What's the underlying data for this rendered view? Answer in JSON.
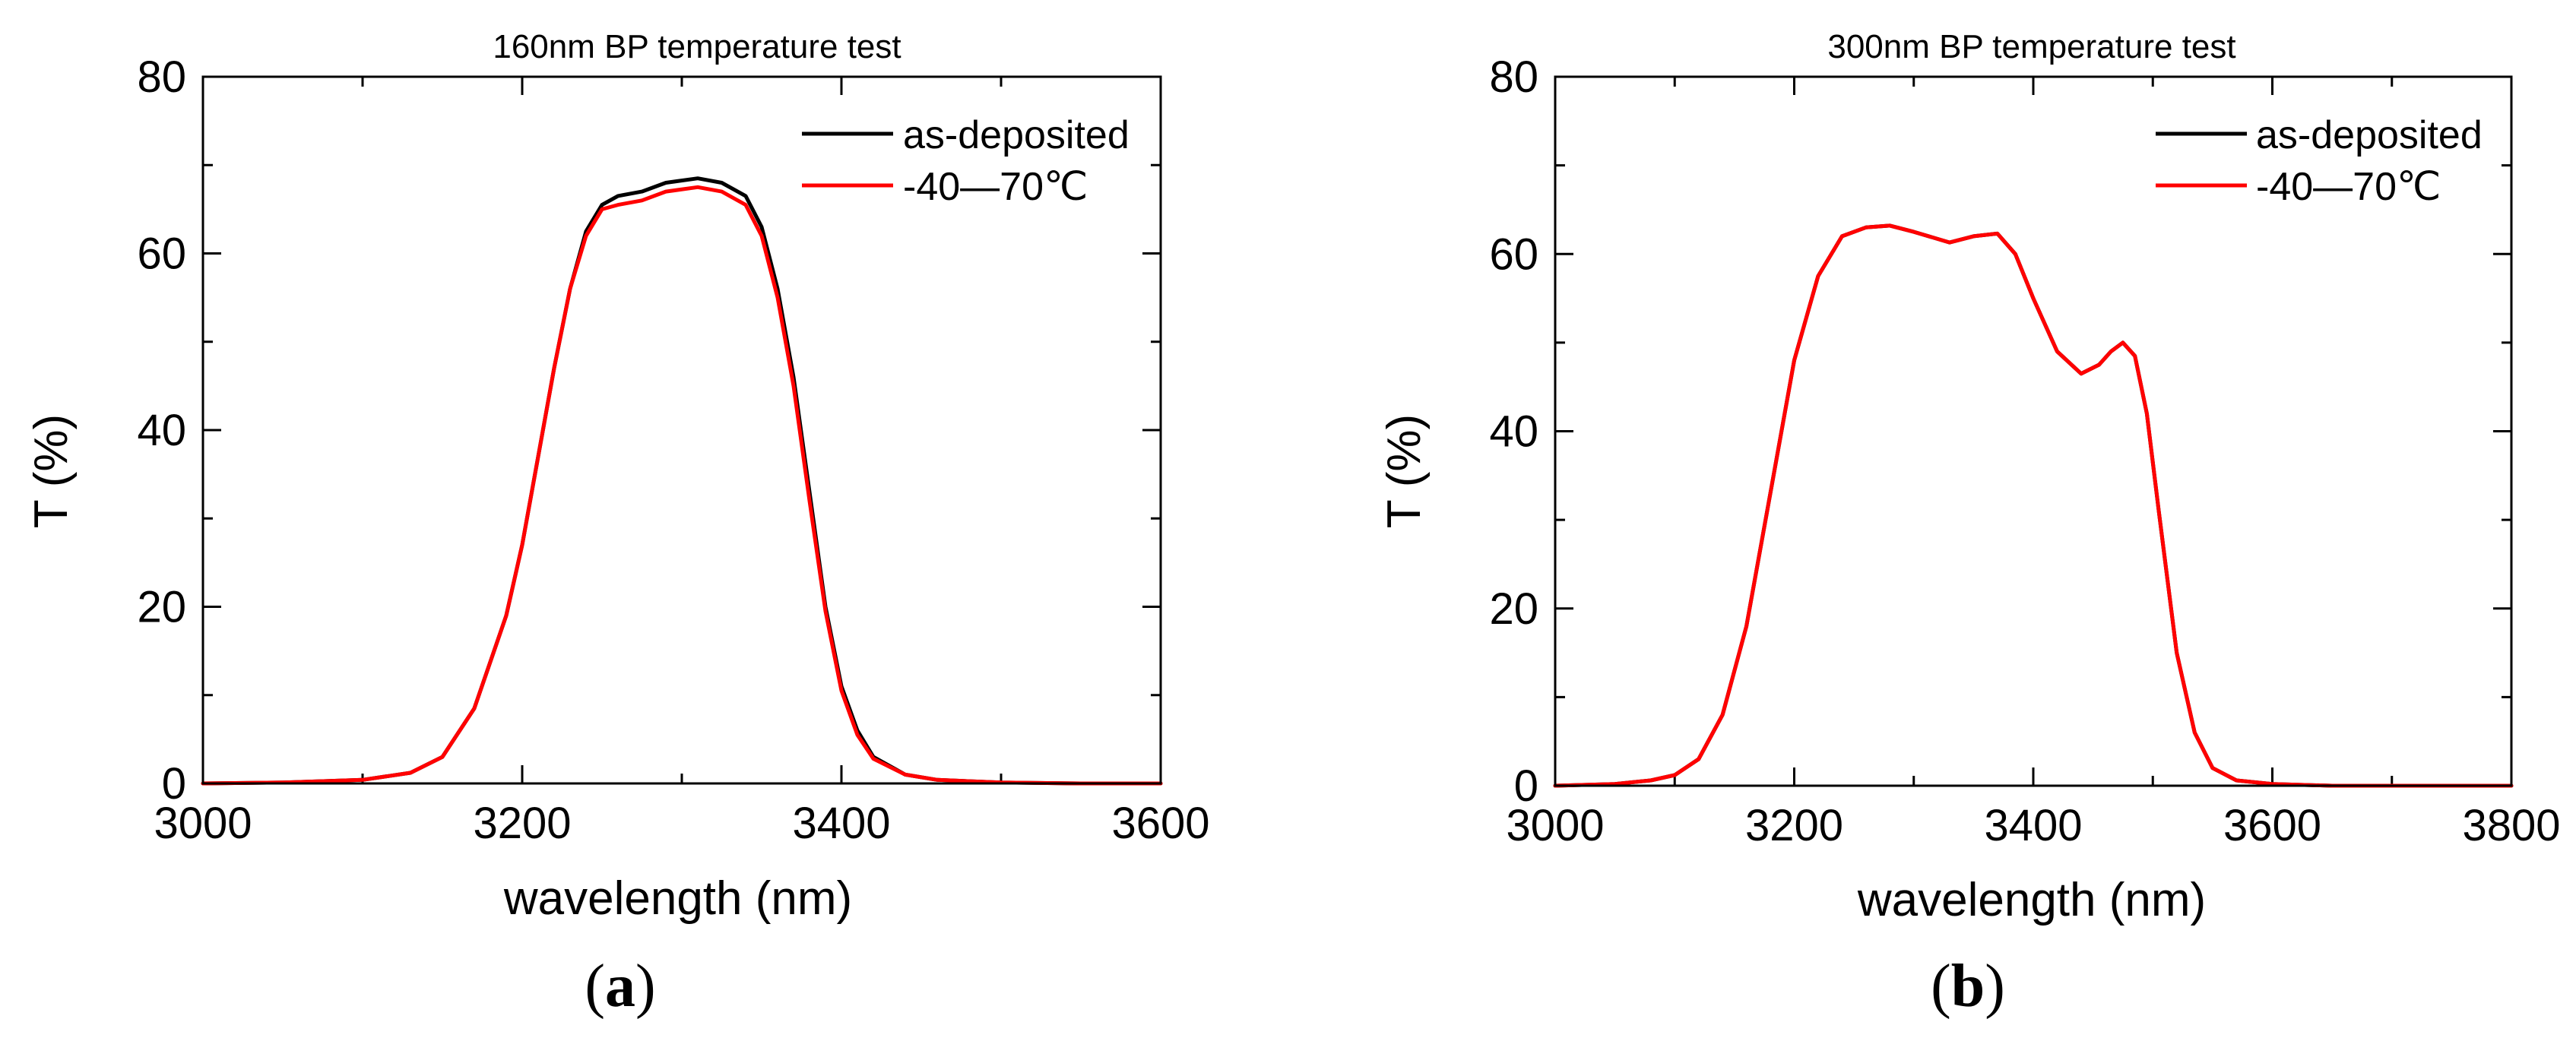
{
  "chart_data": [
    {
      "id": "a",
      "type": "line",
      "panel_label": "a",
      "title": "160nm BP temperature test",
      "xlabel": "wavelength (nm)",
      "ylabel": "T (%)",
      "xlim": [
        3000,
        3600
      ],
      "ylim": [
        0,
        80
      ],
      "xticks": [
        3000,
        3200,
        3400,
        3600
      ],
      "yticks": [
        0,
        20,
        40,
        60,
        80
      ],
      "xminor": 100,
      "yminor": 10,
      "legend_position": "top-right",
      "series": [
        {
          "name": "as-deposited",
          "color": "#000000",
          "x": [
            3000,
            3050,
            3100,
            3130,
            3150,
            3170,
            3190,
            3200,
            3210,
            3220,
            3230,
            3240,
            3250,
            3260,
            3275,
            3290,
            3310,
            3325,
            3340,
            3350,
            3360,
            3370,
            3380,
            3390,
            3400,
            3410,
            3420,
            3440,
            3460,
            3500,
            3550,
            3600
          ],
          "y": [
            0,
            0.1,
            0.4,
            1.2,
            3.0,
            8.5,
            19.0,
            27.0,
            37.0,
            47.0,
            56.0,
            62.5,
            65.5,
            66.5,
            67.0,
            68.0,
            68.5,
            68.0,
            66.5,
            63.0,
            56.0,
            46.0,
            33.0,
            20.0,
            11.0,
            6.0,
            3.0,
            1.0,
            0.4,
            0.1,
            0,
            0
          ]
        },
        {
          "name": "-40—70℃",
          "color": "#ff0000",
          "x": [
            3000,
            3050,
            3100,
            3130,
            3150,
            3170,
            3190,
            3200,
            3210,
            3220,
            3230,
            3240,
            3250,
            3260,
            3275,
            3290,
            3310,
            3325,
            3340,
            3350,
            3360,
            3370,
            3380,
            3390,
            3400,
            3410,
            3420,
            3440,
            3460,
            3500,
            3550,
            3600
          ],
          "y": [
            0,
            0.1,
            0.4,
            1.2,
            3.0,
            8.5,
            19.0,
            27.0,
            37.0,
            47.0,
            56.0,
            62.0,
            65.0,
            65.5,
            66.0,
            67.0,
            67.5,
            67.0,
            65.5,
            62.0,
            55.0,
            45.0,
            32.0,
            19.5,
            10.5,
            5.5,
            2.8,
            1.0,
            0.4,
            0.1,
            0,
            0
          ]
        }
      ]
    },
    {
      "id": "b",
      "type": "line",
      "panel_label": "b",
      "title": "300nm BP temperature test",
      "xlabel": "wavelength (nm)",
      "ylabel": "T (%)",
      "xlim": [
        3000,
        3800
      ],
      "ylim": [
        0,
        80
      ],
      "xticks": [
        3000,
        3200,
        3400,
        3600,
        3800
      ],
      "yticks": [
        0,
        20,
        40,
        60,
        80
      ],
      "xminor": 100,
      "yminor": 10,
      "legend_position": "top-right",
      "series": [
        {
          "name": "as-deposited",
          "color": "#000000",
          "x": [
            3000,
            3050,
            3080,
            3100,
            3120,
            3140,
            3160,
            3180,
            3200,
            3220,
            3240,
            3260,
            3280,
            3300,
            3330,
            3350,
            3370,
            3385,
            3400,
            3420,
            3440,
            3455,
            3465,
            3475,
            3485,
            3495,
            3505,
            3520,
            3535,
            3550,
            3570,
            3600,
            3650,
            3700,
            3800
          ],
          "y": [
            0,
            0.2,
            0.6,
            1.2,
            3.0,
            8.0,
            18.0,
            33.0,
            48.0,
            57.5,
            62.0,
            63.0,
            63.2,
            62.5,
            61.3,
            62.0,
            62.3,
            60.0,
            55.0,
            49.0,
            46.5,
            47.5,
            49.0,
            50.0,
            48.5,
            42.0,
            31.0,
            15.0,
            6.0,
            2.0,
            0.6,
            0.2,
            0,
            0,
            0
          ]
        },
        {
          "name": "-40—70℃",
          "color": "#ff0000",
          "x": [
            3000,
            3050,
            3080,
            3100,
            3120,
            3140,
            3160,
            3180,
            3200,
            3220,
            3240,
            3260,
            3280,
            3300,
            3330,
            3350,
            3370,
            3385,
            3400,
            3420,
            3440,
            3455,
            3465,
            3475,
            3485,
            3495,
            3505,
            3520,
            3535,
            3550,
            3570,
            3600,
            3650,
            3700,
            3800
          ],
          "y": [
            0,
            0.2,
            0.6,
            1.2,
            3.0,
            8.0,
            18.0,
            33.0,
            48.0,
            57.5,
            62.0,
            63.0,
            63.2,
            62.5,
            61.3,
            62.0,
            62.3,
            60.0,
            55.0,
            49.0,
            46.5,
            47.5,
            49.0,
            50.0,
            48.5,
            42.0,
            31.0,
            15.0,
            6.0,
            2.0,
            0.6,
            0.2,
            0,
            0,
            0
          ]
        }
      ]
    }
  ]
}
